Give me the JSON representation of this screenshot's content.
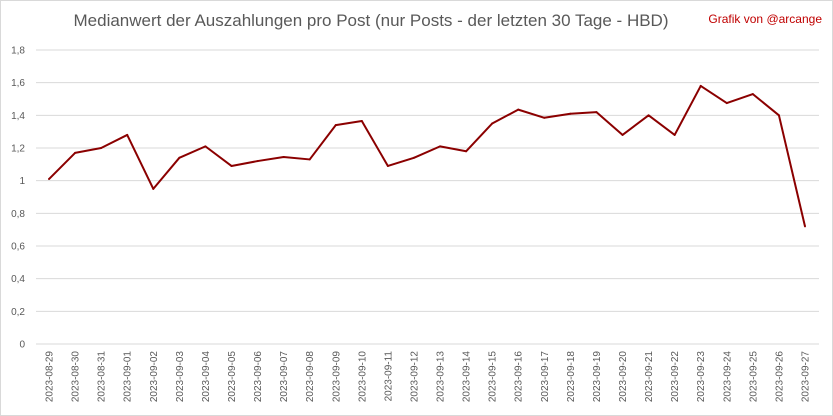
{
  "chart_data": {
    "type": "line",
    "title": "Medianwert der Auszahlungen pro Post (nur Posts - der letzten 30 Tage - HBD)",
    "annotation": "Grafik von @arcange",
    "xlabel": "",
    "ylabel": "",
    "ylim": [
      0,
      1.8
    ],
    "yticks": [
      "0",
      "0,2",
      "0,4",
      "0,6",
      "0,8",
      "1",
      "1,2",
      "1,4",
      "1,6",
      "1,8"
    ],
    "grid": true,
    "legend": "none",
    "line_color": "#8b0000",
    "categories": [
      "2023-08-29",
      "2023-08-30",
      "2023-08-31",
      "2023-09-01",
      "2023-09-02",
      "2023-09-03",
      "2023-09-04",
      "2023-09-05",
      "2023-09-06",
      "2023-09-07",
      "2023-09-08",
      "2023-09-09",
      "2023-09-10",
      "2023-09-11",
      "2023-09-12",
      "2023-09-13",
      "2023-09-14",
      "2023-09-15",
      "2023-09-16",
      "2023-09-17",
      "2023-09-18",
      "2023-09-19",
      "2023-09-20",
      "2023-09-21",
      "2023-09-22",
      "2023-09-23",
      "2023-09-24",
      "2023-09-25",
      "2023-09-26",
      "2023-09-27"
    ],
    "values": [
      1.01,
      1.17,
      1.2,
      1.28,
      0.95,
      1.14,
      1.21,
      1.09,
      1.12,
      1.145,
      1.13,
      1.34,
      1.365,
      1.09,
      1.14,
      1.21,
      1.18,
      1.35,
      1.435,
      1.385,
      1.41,
      1.42,
      1.28,
      1.4,
      1.28,
      1.58,
      1.475,
      1.53,
      1.4,
      0.72
    ]
  }
}
